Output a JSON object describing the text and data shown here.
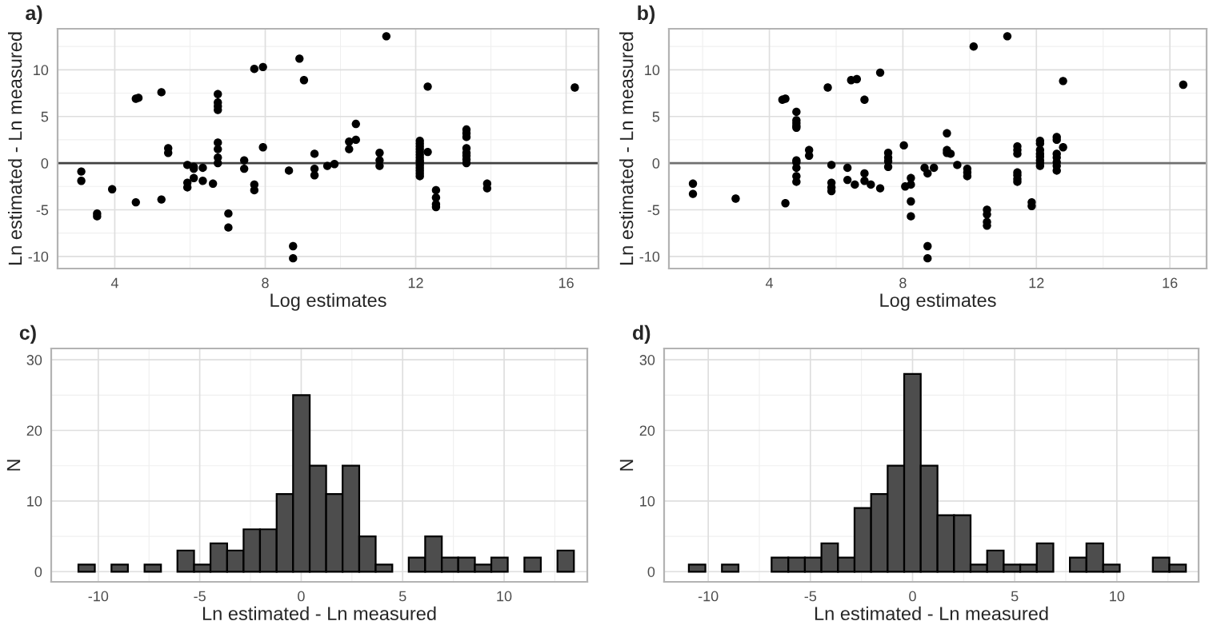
{
  "chart_data": [
    {
      "type": "scatter",
      "title": "a)",
      "xlabel": "Log estimates",
      "ylabel": "Ln estimated - Ln measured",
      "xlim": [
        2.48,
        16.86
      ],
      "ylim": [
        -11.3,
        14.4
      ],
      "xticks": [
        4,
        8,
        12,
        16
      ],
      "yticks": [
        -10,
        -5,
        0,
        5,
        10
      ],
      "grid": true,
      "marker": "circle",
      "ref_lines": [
        {
          "axis": "y",
          "value": 0,
          "color": "#404040"
        }
      ],
      "series": [
        {
          "color": "#000000",
          "x": [
            3.11,
            3.11,
            3.53,
            3.53,
            3.93,
            4.56,
            4.63,
            4.56,
            5.24,
            5.24,
            5.42,
            5.42,
            5.93,
            5.93,
            5.93,
            6.1,
            6.1,
            6.1,
            6.34,
            6.34,
            6.61,
            6.74,
            6.74,
            6.74,
            6.74,
            6.74,
            6.74,
            6.74,
            6.74,
            7.02,
            7.02,
            7.44,
            7.44,
            7.71,
            7.71,
            7.71,
            7.94,
            7.94,
            8.63,
            8.74,
            8.74,
            8.91,
            9.03,
            9.31,
            9.31,
            9.31,
            9.65,
            9.84,
            10.23,
            10.23,
            10.41,
            10.41,
            11.04,
            11.04,
            11.04,
            11.22,
            12.11,
            12.11,
            12.11,
            12.11,
            12.11,
            12.11,
            12.11,
            12.11,
            12.11,
            12.11,
            12.11,
            12.11,
            12.11,
            12.11,
            12.32,
            12.32,
            12.54,
            12.54,
            12.54,
            12.54,
            13.35,
            13.35,
            13.35,
            13.35,
            13.35,
            13.35,
            13.35,
            13.35,
            13.9,
            13.9,
            16.23
          ],
          "values": [
            -0.9,
            -1.9,
            -5.4,
            -5.7,
            -2.8,
            6.9,
            7.0,
            -4.2,
            7.6,
            -3.9,
            1.6,
            1.1,
            -0.2,
            -2.1,
            -2.6,
            -0.4,
            -0.6,
            -1.6,
            -0.5,
            -1.9,
            -2.2,
            7.4,
            6.5,
            6.1,
            5.7,
            2.2,
            1.5,
            0.6,
            0.0,
            -5.4,
            -6.9,
            0.3,
            -0.6,
            -2.3,
            -2.9,
            10.1,
            10.3,
            1.7,
            -0.8,
            -8.9,
            -10.2,
            11.2,
            8.9,
            1.0,
            -0.6,
            -1.3,
            -0.3,
            -0.1,
            2.3,
            1.5,
            4.2,
            2.5,
            1.1,
            0.3,
            -0.3,
            13.6,
            2.4,
            2.1,
            1.8,
            1.5,
            1.2,
            0.9,
            0.6,
            0.3,
            0.1,
            -0.2,
            -0.5,
            -0.8,
            -1.1,
            -1.4,
            8.2,
            1.2,
            -2.9,
            -3.7,
            -4.4,
            -4.7,
            3.6,
            3.2,
            2.8,
            1.6,
            1.1,
            0.8,
            0.4,
            0.0,
            -2.2,
            -2.7,
            8.1
          ]
        }
      ]
    },
    {
      "type": "scatter",
      "title": "b)",
      "xlabel": "Log estimates",
      "ylabel": "Ln estimated - Ln measured",
      "xlim": [
        0.99,
        17.1
      ],
      "ylim": [
        -11.3,
        14.4
      ],
      "xticks": [
        4,
        8,
        12,
        16
      ],
      "yticks": [
        -10,
        -5,
        0,
        5,
        10
      ],
      "grid": true,
      "marker": "circle",
      "ref_lines": [
        {
          "axis": "y",
          "value": 0,
          "color": "#707070"
        }
      ],
      "series": [
        {
          "color": "#000000",
          "x": [
            1.71,
            1.71,
            2.99,
            4.39,
            4.48,
            4.48,
            4.81,
            4.81,
            4.81,
            4.81,
            4.81,
            4.81,
            4.81,
            4.81,
            4.81,
            4.81,
            5.19,
            5.19,
            5.75,
            5.86,
            5.86,
            5.86,
            5.86,
            6.34,
            6.34,
            6.45,
            6.62,
            6.56,
            6.85,
            6.85,
            6.85,
            7.04,
            7.32,
            7.32,
            7.56,
            7.56,
            7.56,
            7.56,
            8.03,
            8.07,
            8.24,
            8.24,
            8.24,
            8.24,
            8.65,
            8.74,
            8.74,
            8.74,
            8.93,
            9.32,
            9.32,
            9.32,
            9.43,
            9.63,
            9.93,
            9.93,
            9.93,
            10.12,
            10.52,
            10.52,
            10.52,
            10.52,
            11.13,
            11.43,
            11.43,
            11.43,
            11.43,
            11.43,
            11.43,
            11.43,
            11.86,
            11.86,
            12.11,
            12.11,
            12.11,
            12.11,
            12.11,
            12.11,
            12.11,
            12.11,
            12.61,
            12.61,
            12.61,
            12.61,
            12.61,
            12.61,
            12.61,
            12.8,
            12.8,
            16.4
          ],
          "values": [
            -2.2,
            -3.3,
            -3.8,
            6.8,
            6.9,
            -4.3,
            5.5,
            4.6,
            4.3,
            4.0,
            3.8,
            0.3,
            0.1,
            -0.5,
            -1.4,
            -2.0,
            1.4,
            0.8,
            8.1,
            -0.2,
            -2.1,
            -2.6,
            -3.0,
            -0.5,
            -1.8,
            8.9,
            9.0,
            -2.3,
            6.8,
            -1.1,
            -1.9,
            -2.3,
            9.7,
            -2.7,
            1.1,
            0.6,
            0.2,
            -0.4,
            1.9,
            -2.5,
            -1.6,
            -2.3,
            -4.1,
            -5.7,
            -0.5,
            -1.1,
            -8.9,
            -10.2,
            -0.5,
            3.2,
            1.4,
            1.1,
            1.0,
            -0.2,
            -0.6,
            -1.0,
            -1.4,
            12.5,
            -5.0,
            -5.5,
            -6.3,
            -6.7,
            13.6,
            1.8,
            1.4,
            1.0,
            -1.0,
            -1.3,
            -1.7,
            -2.0,
            -4.2,
            -4.6,
            2.4,
            2.1,
            1.4,
            1.0,
            0.7,
            0.3,
            0.0,
            -0.3,
            2.8,
            2.5,
            1.0,
            0.6,
            0.1,
            -0.3,
            -0.8,
            8.8,
            1.7,
            8.4
          ]
        }
      ]
    },
    {
      "type": "histogram",
      "title": "c)",
      "xlabel": "Ln estimated - Ln measured",
      "ylabel": "N",
      "xlim": [
        -12.32,
        14.1
      ],
      "ylim": [
        -1.44,
        31.6
      ],
      "xticks": [
        -10,
        -5,
        0,
        5,
        10
      ],
      "yticks": [
        0,
        10,
        20,
        30
      ],
      "grid": true,
      "color": "#4d4d4d",
      "bins": [
        -10.98,
        -10.17,
        -9.35,
        -8.54,
        -7.72,
        -6.91,
        -6.1,
        -5.28,
        -4.47,
        -3.65,
        -2.84,
        -2.03,
        -1.21,
        -0.4,
        0.42,
        1.23,
        2.04,
        2.86,
        3.67,
        4.49,
        5.3,
        6.11,
        6.93,
        7.74,
        8.56,
        9.37,
        10.18,
        11.0,
        11.81,
        12.63,
        13.44
      ],
      "values": [
        1,
        0,
        1,
        0,
        1,
        0,
        3,
        1,
        4,
        3,
        6,
        6,
        11,
        25,
        15,
        11,
        15,
        5,
        1,
        0,
        2,
        5,
        2,
        2,
        1,
        2,
        0,
        2,
        0,
        3
      ]
    },
    {
      "type": "histogram",
      "title": "d)",
      "xlabel": "Ln estimated - Ln measured",
      "ylabel": "N",
      "xlim": [
        -12.16,
        14.0
      ],
      "ylim": [
        -1.44,
        31.6
      ],
      "xticks": [
        -10,
        -5,
        0,
        5,
        10
      ],
      "yticks": [
        0,
        10,
        20,
        30
      ],
      "grid": true,
      "color": "#4d4d4d",
      "bins": [
        -10.95,
        -10.14,
        -9.33,
        -8.52,
        -7.71,
        -6.9,
        -6.08,
        -5.27,
        -4.46,
        -3.65,
        -2.84,
        -2.03,
        -1.22,
        -0.41,
        0.4,
        1.22,
        2.03,
        2.84,
        3.65,
        4.46,
        5.27,
        6.08,
        6.89,
        7.7,
        8.51,
        9.33,
        10.14,
        10.95,
        11.76,
        12.57,
        13.38
      ],
      "values": [
        1,
        0,
        1,
        0,
        0,
        2,
        2,
        2,
        4,
        2,
        9,
        11,
        15,
        28,
        15,
        8,
        8,
        1,
        3,
        1,
        1,
        4,
        0,
        2,
        4,
        1,
        0,
        0,
        2,
        1
      ]
    }
  ]
}
